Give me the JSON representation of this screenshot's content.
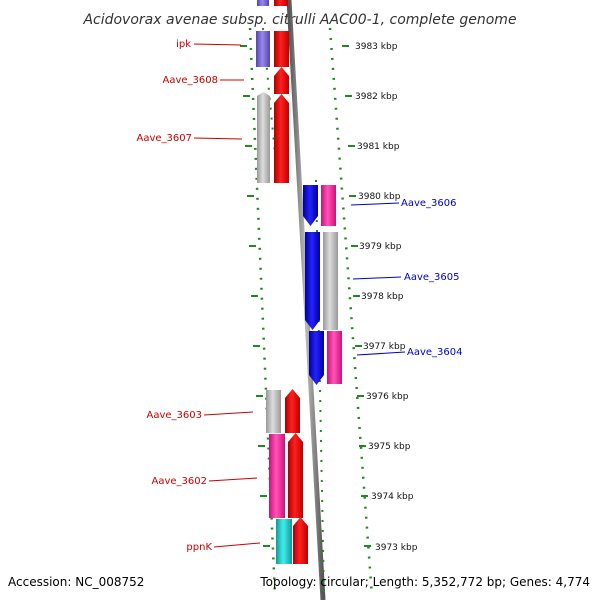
{
  "title": "Acidovorax avenae subsp. citrulli AAC00-1, complete genome",
  "footer": {
    "accession": "Accession: NC_008752",
    "info": "Topology: circular; Length: 5,352,772 bp; Genes: 4,774"
  },
  "kbp_labels": [
    "3983 kbp",
    "3982 kbp",
    "3981 kbp",
    "3980 kbp",
    "3979 kbp",
    "3978 kbp",
    "3977 kbp",
    "3976 kbp",
    "3975 kbp",
    "3974 kbp",
    "3973 kbp"
  ],
  "gene_labels": {
    "left": [
      "ipk",
      "Aave_3608",
      "Aave_3607",
      "Aave_3603",
      "Aave_3602",
      "ppnK"
    ],
    "right": [
      "Aave_3606",
      "Aave_3605",
      "Aave_3604"
    ]
  },
  "colors": {
    "red": "#ff0000",
    "blue": "#0000ee",
    "magenta": "#ff33aa",
    "grey": "#c0c0c0",
    "violet": "#7766cc",
    "cyan": "#22cccc",
    "dot_green": "#228822",
    "label_red": "#cc0000",
    "label_blue": "#0000cc"
  }
}
